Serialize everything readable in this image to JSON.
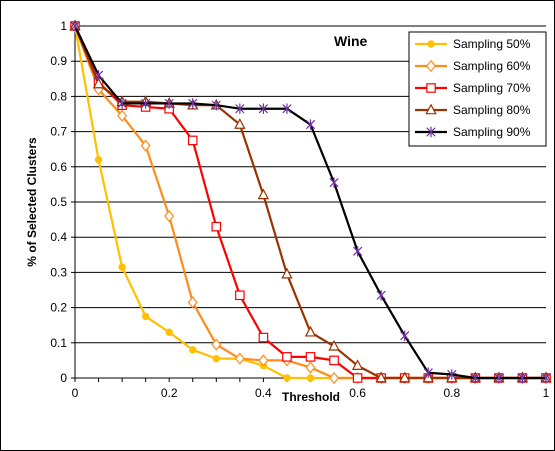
{
  "chart_data": {
    "type": "line",
    "annotation": "Wine",
    "xlabel": "Threshold",
    "ylabel": "% of Selected Clusters",
    "xlim": [
      0,
      1
    ],
    "ylim": [
      0,
      1
    ],
    "x_ticks": [
      "0",
      "0.2",
      "0.4",
      "0.6",
      "0.8",
      "1"
    ],
    "y_ticks": [
      "0",
      "0.1",
      "0.2",
      "0.3",
      "0.4",
      "0.5",
      "0.6",
      "0.7",
      "0.8",
      "0.9",
      "1"
    ],
    "grid": "horizontal",
    "legend_position": "top-right",
    "x": [
      0,
      0.05,
      0.1,
      0.15,
      0.2,
      0.25,
      0.3,
      0.35,
      0.4,
      0.45,
      0.5,
      0.55,
      0.6,
      0.65,
      0.7,
      0.75,
      0.8,
      0.85,
      0.9,
      0.95,
      1
    ],
    "series": [
      {
        "name": "Sampling 50%",
        "color": "#FFC000",
        "marker": "circle",
        "values": [
          1,
          0.62,
          0.315,
          0.175,
          0.13,
          0.08,
          0.055,
          0.055,
          0.035,
          0,
          0,
          0,
          0,
          0,
          0,
          0,
          0,
          0,
          0,
          0,
          0
        ]
      },
      {
        "name": "Sampling 60%",
        "color": "#FF8C1A",
        "marker": "diamond",
        "values": [
          1,
          0.82,
          0.745,
          0.66,
          0.46,
          0.215,
          0.095,
          0.055,
          0.05,
          0.05,
          0.03,
          0,
          0,
          0,
          0,
          0,
          0,
          0,
          0,
          0,
          0
        ]
      },
      {
        "name": "Sampling 70%",
        "color": "#FF0000",
        "marker": "square",
        "values": [
          1,
          0.84,
          0.775,
          0.77,
          0.765,
          0.675,
          0.43,
          0.235,
          0.115,
          0.06,
          0.06,
          0.05,
          0,
          0,
          0,
          0,
          0,
          0,
          0,
          0,
          0
        ]
      },
      {
        "name": "Sampling 80%",
        "color": "#993300",
        "marker": "triangle",
        "values": [
          1,
          0.835,
          0.785,
          0.785,
          0.78,
          0.775,
          0.775,
          0.72,
          0.52,
          0.295,
          0.13,
          0.09,
          0.035,
          0,
          0,
          0,
          0,
          0,
          0,
          0,
          0
        ]
      },
      {
        "name": "Sampling 90%",
        "color": "#000000",
        "marker": "star",
        "values": [
          1,
          0.86,
          0.78,
          0.78,
          0.78,
          0.78,
          0.775,
          0.765,
          0.765,
          0.765,
          0.72,
          0.555,
          0.36,
          0.235,
          0.12,
          0.015,
          0.01,
          0,
          0,
          0,
          0
        ]
      }
    ]
  }
}
